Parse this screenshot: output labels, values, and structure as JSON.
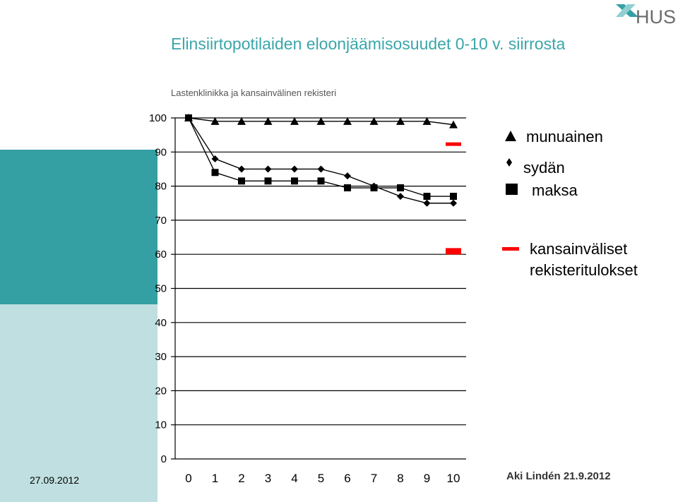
{
  "slide": {
    "title": "Elinsiirtopotilaiden eloonjäämisosuudet 0-10 v. siirrosta",
    "subtitle": "Lastenklinikka ja kansainvälinen rekisteri",
    "date": "27.09.2012",
    "author": "Aki Lindén 21.9.2012",
    "logo_text": "HUS"
  },
  "chart_data": {
    "type": "line",
    "title": "Elinsiirtopotilaiden eloonjäämisosuudet 0-10 v. siirrosta",
    "subtitle": "Lastenklinikka ja kansainvälinen rekisteri",
    "xlabel": "",
    "ylabel": "",
    "categories": [
      "0",
      "1",
      "2",
      "3",
      "4",
      "5",
      "6",
      "7",
      "8",
      "9",
      "10"
    ],
    "x": [
      0,
      1,
      2,
      3,
      4,
      5,
      6,
      7,
      8,
      9,
      10
    ],
    "ylim": [
      0,
      100
    ],
    "yticks": [
      "0",
      "10",
      "20",
      "30",
      "40",
      "50",
      "60",
      "70",
      "80",
      "90",
      "100"
    ],
    "grid": "horizontal",
    "legend_position": "right",
    "series": [
      {
        "name": "munuainen",
        "marker": "triangle",
        "values": [
          100,
          99,
          99,
          99,
          99,
          99,
          99,
          99,
          99,
          99,
          98
        ]
      },
      {
        "name": "sydän",
        "marker": "diamond",
        "values": [
          100,
          88,
          85,
          85,
          85,
          85,
          83,
          80,
          77,
          75,
          75
        ]
      },
      {
        "name": "maksa",
        "marker": "square",
        "values": [
          100,
          84,
          81.5,
          81.5,
          81.5,
          81.5,
          79.5,
          79.5,
          79.5,
          77,
          77
        ]
      }
    ],
    "reference": {
      "name": "kansainväliset rekisteritulokset",
      "color": "#ff0000",
      "x": 10,
      "values": [
        92,
        61
      ]
    }
  }
}
